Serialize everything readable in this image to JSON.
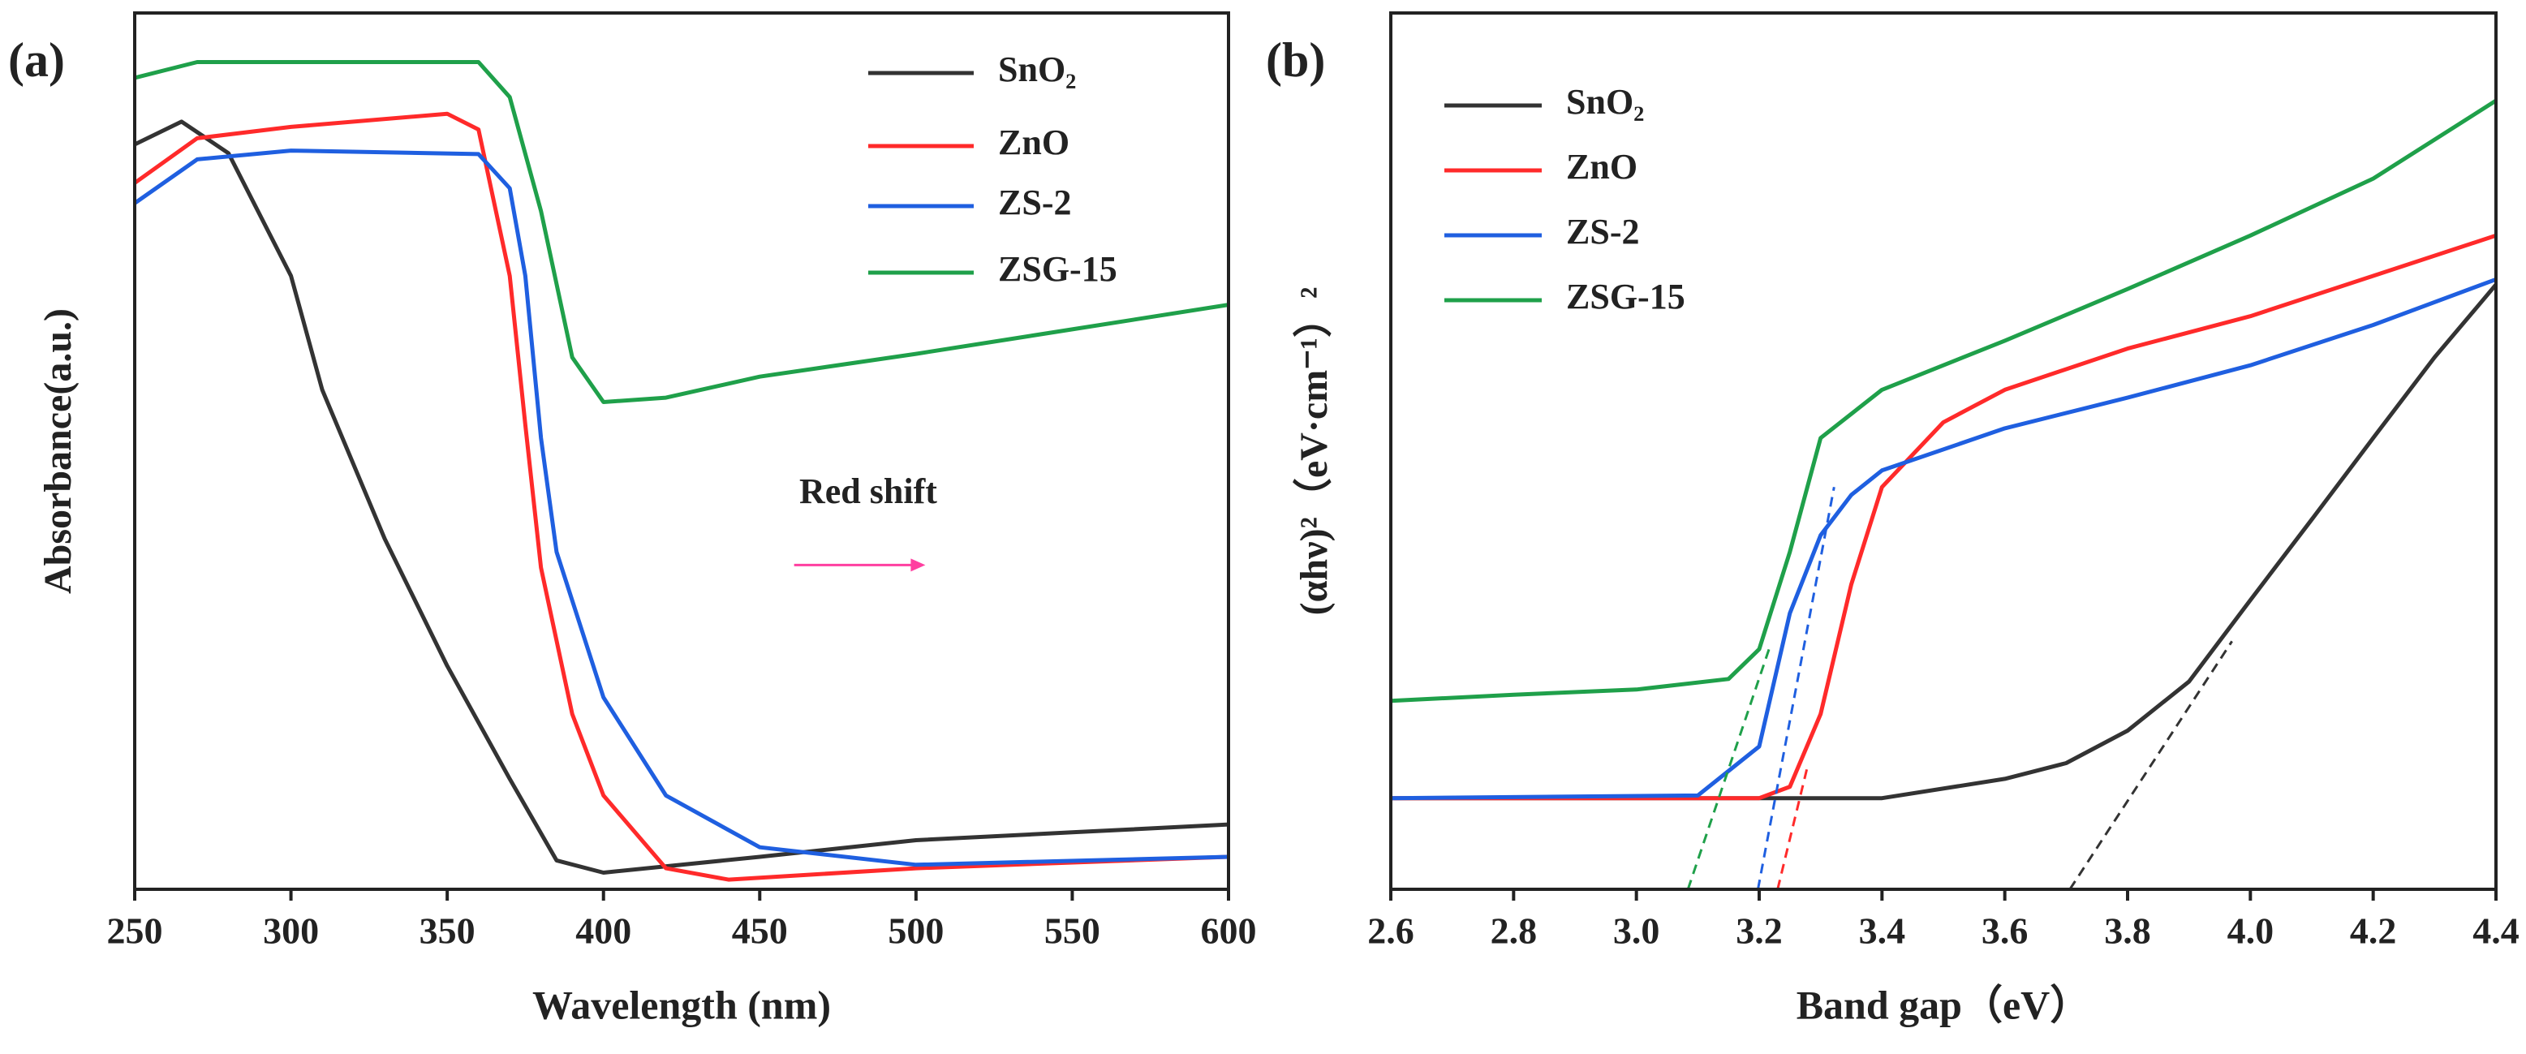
{
  "chart_data": [
    {
      "type": "line",
      "panel_label": "(a)",
      "xlabel": "Wavelength (nm)",
      "ylabel": "Absorbance(a.u.)",
      "xlim": [
        250,
        600
      ],
      "xticks": [
        250,
        300,
        350,
        400,
        450,
        500,
        550,
        600
      ],
      "ylim": [
        0,
        100
      ],
      "legend": "upper right",
      "series": [
        {
          "name": "SnO₂",
          "color": "#333333",
          "x": [
            250,
            265,
            280,
            300,
            310,
            330,
            350,
            370,
            385,
            400,
            450,
            500,
            550,
            600
          ],
          "values": [
            85,
            87.6,
            84,
            70,
            57,
            40,
            25.5,
            12.6,
            3.3,
            1.9,
            3.7,
            5.6,
            6.5,
            7.4
          ]
        },
        {
          "name": "ZnO",
          "color": "#ff2a2a",
          "x": [
            250,
            270,
            300,
            350,
            360,
            370,
            375,
            380,
            390,
            400,
            420,
            440,
            500,
            600
          ],
          "values": [
            80.6,
            85.7,
            87,
            88.5,
            86.7,
            70,
            53,
            36.7,
            20,
            10.7,
            2.4,
            1.1,
            2.4,
            3.7
          ]
        },
        {
          "name": "ZS-2",
          "color": "#1f5fe0",
          "x": [
            250,
            270,
            300,
            360,
            370,
            375,
            380,
            385,
            400,
            420,
            450,
            500,
            600
          ],
          "values": [
            78.3,
            83.3,
            84.3,
            83.9,
            80,
            70,
            51.5,
            38.5,
            21.9,
            10.7,
            4.8,
            2.8,
            3.7
          ]
        },
        {
          "name": "ZSG-15",
          "color": "#1fa04a",
          "x": [
            250,
            270,
            300,
            360,
            370,
            380,
            390,
            400,
            420,
            450,
            500,
            550,
            600
          ],
          "values": [
            92.6,
            94.4,
            94.4,
            94.4,
            90.4,
            77.4,
            60.7,
            55.6,
            56.1,
            58.5,
            61.1,
            63.9,
            66.7
          ]
        }
      ],
      "annotation": {
        "text": "Red shift",
        "color": "#ff3fa0",
        "x": 484.7,
        "y": 45,
        "arrow_x": [
          461,
          503
        ],
        "arrow_y": 37
      }
    },
    {
      "type": "line",
      "panel_label": "(b)",
      "xlabel": "Band gap（eV）",
      "ylabel": "(αhν)²（eV·cm⁻¹）²",
      "xlim": [
        2.6,
        4.4
      ],
      "xticks": [
        2.6,
        2.8,
        {
          "value": 3.0,
          "label": "3.0"
        },
        3.2,
        3.4,
        3.6,
        3.8,
        {
          "value": 4.0,
          "label": "4.0"
        },
        4.2,
        4.4
      ],
      "ylim": [
        0,
        100
      ],
      "legend": "upper left",
      "series": [
        {
          "name": "SnO₂",
          "color": "#333333",
          "x": [
            2.6,
            3.4,
            3.6,
            3.7,
            3.8,
            3.9,
            4.0,
            4.1,
            4.2,
            4.3,
            4.4
          ],
          "values": [
            10.4,
            10.4,
            12.6,
            14.4,
            18.1,
            23.7,
            33,
            42.2,
            51.5,
            60.7,
            69
          ]
        },
        {
          "name": "ZnO",
          "color": "#ff2a2a",
          "x": [
            2.6,
            3.2,
            3.25,
            3.3,
            3.35,
            3.4,
            3.5,
            3.6,
            3.8,
            4.0,
            4.2,
            4.4
          ],
          "values": [
            10.4,
            10.4,
            11.7,
            20,
            34.8,
            45.9,
            53.3,
            57,
            61.7,
            65.4,
            70,
            74.6
          ]
        },
        {
          "name": "ZS-2",
          "color": "#1f5fe0",
          "x": [
            2.6,
            3.1,
            3.2,
            3.25,
            3.3,
            3.35,
            3.4,
            3.6,
            3.8,
            4.0,
            4.2,
            4.4
          ],
          "values": [
            10.4,
            10.7,
            16.3,
            31.5,
            40.4,
            45,
            47.8,
            52.6,
            56.1,
            59.8,
            64.4,
            69.6
          ]
        },
        {
          "name": "ZSG-15",
          "color": "#1fa04a",
          "x": [
            2.6,
            2.8,
            3.0,
            3.15,
            3.2,
            3.25,
            3.3,
            3.4,
            3.6,
            3.8,
            4.0,
            4.2,
            4.4
          ],
          "values": [
            21.5,
            22.2,
            22.8,
            24,
            27.4,
            38.5,
            51.5,
            57,
            62.6,
            68.5,
            74.6,
            81.1,
            90
          ]
        }
      ],
      "tangents": [
        {
          "color": "#333333",
          "x": [
            3.706,
            3.97
          ],
          "y": [
            0,
            28.3
          ]
        },
        {
          "color": "#ff2a2a",
          "x": [
            3.23,
            3.28
          ],
          "y": [
            0,
            14.4
          ]
        },
        {
          "color": "#1f5fe0",
          "x": [
            3.198,
            3.322
          ],
          "y": [
            0,
            45.9
          ]
        },
        {
          "color": "#1fa04a",
          "x": [
            3.084,
            3.216
          ],
          "y": [
            0,
            27.4
          ]
        }
      ]
    }
  ]
}
